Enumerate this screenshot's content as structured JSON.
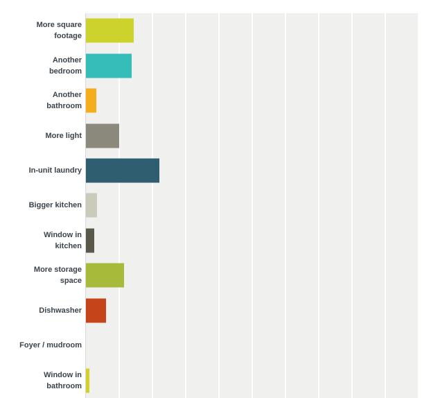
{
  "chart": {
    "background_color": "#ffffff",
    "plot_background_color": "#f0f0ef",
    "gridline_color": "#ffffff",
    "axis_line_color": "#d8d8d8",
    "label_color": "#3b444b"
  },
  "chart_data": {
    "type": "bar",
    "orientation": "horizontal",
    "title": "",
    "xlabel": "",
    "ylabel": "",
    "legend": "none",
    "grid": "on",
    "axis_tick_labels_visible": false,
    "xlim": [
      0,
      100
    ],
    "grid_step": 10,
    "categories": [
      "More square footage",
      "Another bedroom",
      "Another bathroom",
      "More light",
      "In-unit laundry",
      "Bigger kitchen",
      "Window in kitchen",
      "More storage space",
      "Dishwasher",
      "Foyer / mudroom",
      "Window in bathroom"
    ],
    "category_lines": [
      [
        "More square",
        "footage"
      ],
      [
        "Another",
        "bedroom"
      ],
      [
        "Another",
        "bathroom"
      ],
      [
        "More light"
      ],
      [
        "In-unit laundry"
      ],
      [
        "Bigger kitchen"
      ],
      [
        "Window in",
        "kitchen"
      ],
      [
        "More storage",
        "space"
      ],
      [
        "Dishwasher"
      ],
      [
        "Foyer / mudroom"
      ],
      [
        "Window in",
        "bathroom"
      ]
    ],
    "values_pct_estimated": [
      14.3,
      13.8,
      3.1,
      10.0,
      22.1,
      3.3,
      2.5,
      11.4,
      6.1,
      0,
      1.0
    ],
    "bar_colors": [
      "#ccd32d",
      "#35bdb9",
      "#f6ad1c",
      "#8b897b",
      "#2e5e6f",
      "#cbcbbb",
      "#59584a",
      "#a8ba39",
      "#c54419",
      null,
      "#d3d128"
    ]
  }
}
